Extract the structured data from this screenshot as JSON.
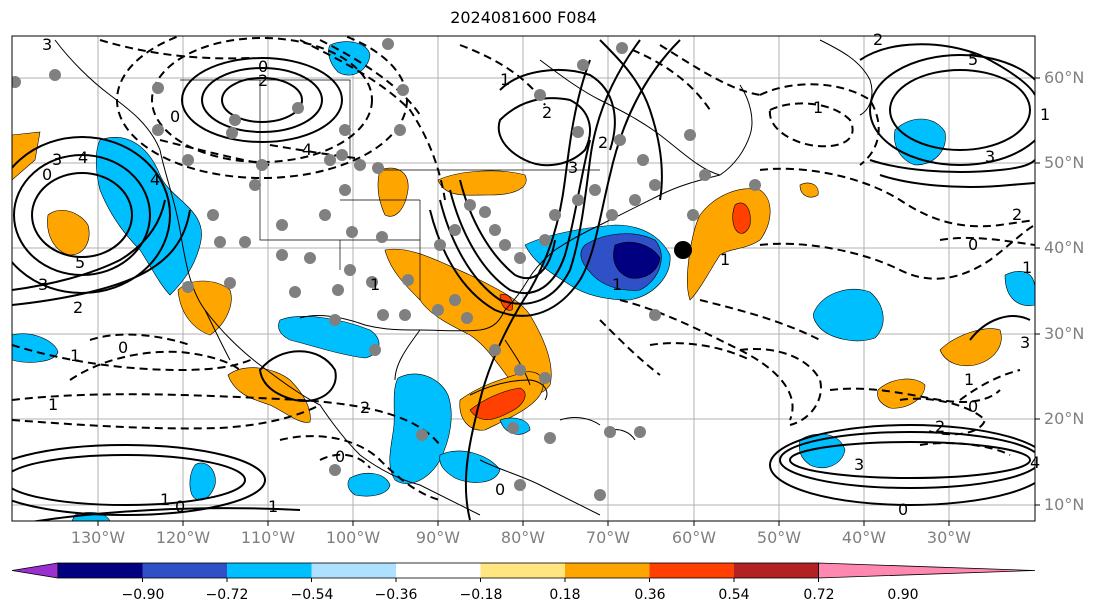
{
  "title": "2024081600 F084",
  "lat_labels": [
    "60°N",
    "50°N",
    "40°N",
    "30°N",
    "20°N",
    "10°N"
  ],
  "lon_labels": [
    "130°W",
    "120°W",
    "110°W",
    "100°W",
    "90°W",
    "80°W",
    "70°W",
    "60°W",
    "50°W",
    "40°W",
    "30°W"
  ],
  "colorbar": {
    "ticks": [
      "−0.90",
      "−0.72",
      "−0.54",
      "−0.36",
      "−0.18",
      "0.18",
      "0.36",
      "0.54",
      "0.72",
      "0.90"
    ],
    "colors": [
      "#9b30d0",
      "#000080",
      "#3050c8",
      "#00bfff",
      "#aee0ff",
      "#ffffff",
      "#ffe680",
      "#ffa500",
      "#ff4000",
      "#b22222",
      "#ff88b0"
    ]
  },
  "contour_labels": [
    "3",
    "0",
    "2",
    "3",
    "4",
    "0",
    "4",
    "5",
    "3",
    "2",
    "0",
    "1",
    "1",
    "1",
    "0",
    "1",
    "2",
    "0",
    "1",
    "4",
    "2",
    "3",
    "2",
    "1",
    "0",
    "5",
    "3",
    "2",
    "0",
    "1",
    "3",
    "4",
    "0",
    "3",
    "1",
    "0",
    "2",
    "1",
    "1",
    "1",
    "2",
    "0",
    "1"
  ],
  "fill_colors": {
    "orange": "#ffa500",
    "red_orange": "#ff4000",
    "light_blue": "#00bfff",
    "mid_blue": "#3050c8",
    "navy": "#000080",
    "station_dot": "#808080"
  }
}
